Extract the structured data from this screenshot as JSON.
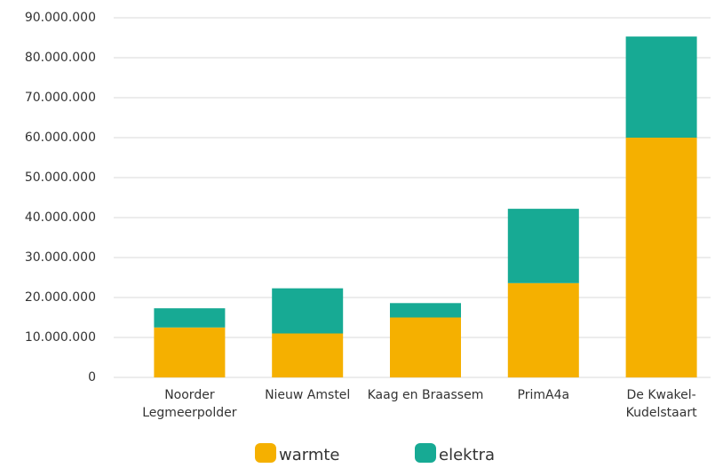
{
  "chart_data": {
    "type": "stacked_bar",
    "categories": [
      "Noorder\nLegmeerpolder",
      "Nieuw Amstel",
      "Kaag en Braassem",
      "PrimA4a",
      "De Kwakel-\nKudelstaart"
    ],
    "series": [
      {
        "name": "warmte",
        "color": "#f5b000",
        "values": [
          12500000,
          11000000,
          15000000,
          23600000,
          60000000
        ]
      },
      {
        "name": "elektra",
        "color": "#17aa94",
        "values": [
          4800000,
          11300000,
          3600000,
          18600000,
          25300000
        ]
      }
    ],
    "ylim": [
      0,
      90000000
    ],
    "yticks": [
      0,
      {
        "value": 10000000,
        "label": "10.000.000"
      },
      {
        "value": 20000000,
        "label": "20.000.000"
      },
      {
        "value": 30000000,
        "label": "30.000.000"
      },
      {
        "value": 40000000,
        "label": "40.000.000"
      },
      {
        "value": 50000000,
        "label": "50.000.000"
      },
      {
        "value": 60000000,
        "label": "60.000.000"
      },
      {
        "value": 70000000,
        "label": "70.000.000"
      },
      {
        "value": 80000000,
        "label": "80.000.000"
      },
      {
        "value": 90000000,
        "label": "90.000.000"
      }
    ],
    "grid": true
  }
}
